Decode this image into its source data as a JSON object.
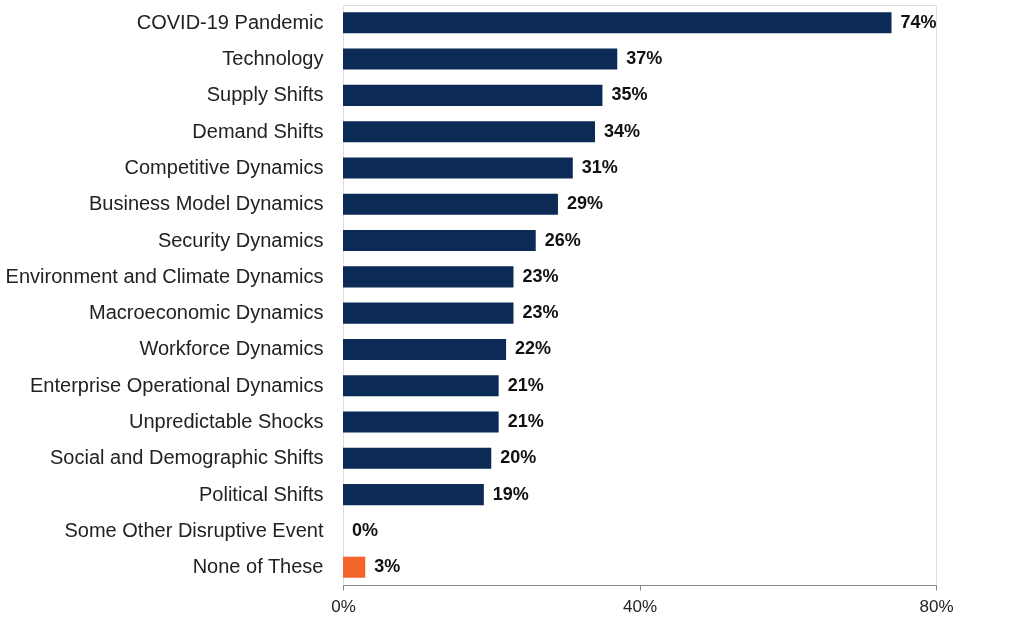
{
  "chart_data": {
    "type": "bar",
    "orientation": "horizontal",
    "categories": [
      "COVID-19 Pandemic",
      "Technology",
      "Supply Shifts",
      "Demand Shifts",
      "Competitive Dynamics",
      "Business Model Dynamics",
      "Security Dynamics",
      "Environment and Climate Dynamics",
      "Macroeconomic Dynamics",
      "Workforce Dynamics",
      "Enterprise Operational Dynamics",
      "Unpredictable Shocks",
      "Social and Demographic Shifts",
      "Political Shifts",
      "Some Other Disruptive Event",
      "None of These"
    ],
    "values": [
      74,
      37,
      35,
      34,
      31,
      29,
      26,
      23,
      23,
      22,
      21,
      21,
      20,
      19,
      0,
      3
    ],
    "colors": [
      "#0b2a55",
      "#0b2a55",
      "#0b2a55",
      "#0b2a55",
      "#0b2a55",
      "#0b2a55",
      "#0b2a55",
      "#0b2a55",
      "#0b2a55",
      "#0b2a55",
      "#0b2a55",
      "#0b2a55",
      "#0b2a55",
      "#0b2a55",
      "#0b2a55",
      "#f4632a"
    ],
    "value_labels": [
      "74%",
      "37%",
      "35%",
      "34%",
      "31%",
      "29%",
      "26%",
      "23%",
      "23%",
      "22%",
      "21%",
      "21%",
      "20%",
      "19%",
      "0%",
      "3%"
    ],
    "xlim": [
      0,
      80
    ],
    "xticks": [
      {
        "value": 0,
        "label": "0%"
      },
      {
        "value": 40,
        "label": "40%"
      },
      {
        "value": 80,
        "label": "80%"
      }
    ],
    "grid": false
  }
}
